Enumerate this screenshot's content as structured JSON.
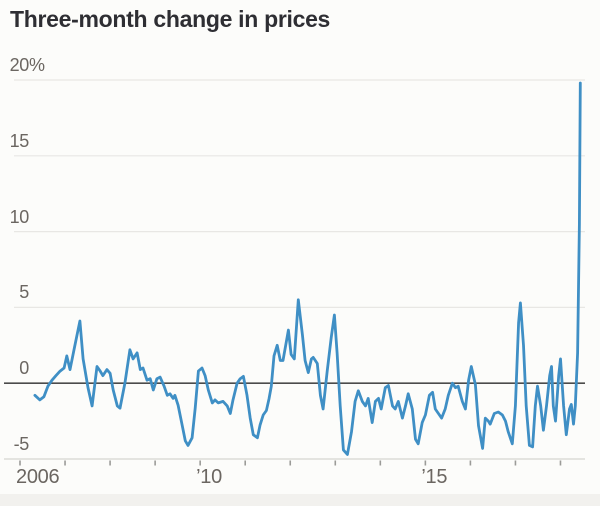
{
  "chart_data": {
    "type": "line",
    "title": "Three-month change in prices",
    "unit": "%",
    "grid": "horizontal",
    "legend": "none",
    "colors": {
      "line": "#3f8fc5",
      "zero_line": "#4b4b4b",
      "gridline": "#e8e7e4",
      "axis_line": "#dcdbd8",
      "tick": "#9b9b98",
      "axis_labels": "#6b6661",
      "title": "#2e2e33",
      "background": "#fcfcfa"
    },
    "x_axis": {
      "min": 2006,
      "max": 2018.5,
      "tick_years": [
        2006,
        2007,
        2008,
        2009,
        2010,
        2011,
        2012,
        2013,
        2014,
        2015,
        2016,
        2017,
        2018
      ],
      "labels": [
        {
          "year": 2006,
          "label": "2006"
        },
        {
          "year": 2010,
          "label": "’10"
        },
        {
          "year": 2015,
          "label": "’15"
        }
      ]
    },
    "y_axis": {
      "min": -5,
      "max": 20,
      "ticks": [
        {
          "value": 20,
          "label": "20",
          "suffix": "%"
        },
        {
          "value": 15,
          "label": "15"
        },
        {
          "value": 10,
          "label": "10"
        },
        {
          "value": 5,
          "label": "5"
        },
        {
          "value": 0,
          "label": "0"
        },
        {
          "value": -5,
          "label": "-5"
        }
      ]
    },
    "series": [
      {
        "name": "Three-month change in prices",
        "color": "#3f8fc5",
        "points": [
          [
            2006.33,
            -0.8
          ],
          [
            2006.44,
            -1.1
          ],
          [
            2006.53,
            -0.9
          ],
          [
            2006.62,
            -0.2
          ],
          [
            2006.71,
            0.2
          ],
          [
            2006.8,
            0.5
          ],
          [
            2006.89,
            0.8
          ],
          [
            2006.98,
            1.0
          ],
          [
            2007.04,
            1.8
          ],
          [
            2007.11,
            0.9
          ],
          [
            2007.2,
            2.2
          ],
          [
            2007.33,
            4.1
          ],
          [
            2007.4,
            1.6
          ],
          [
            2007.51,
            -0.3
          ],
          [
            2007.6,
            -1.5
          ],
          [
            2007.71,
            1.1
          ],
          [
            2007.78,
            0.8
          ],
          [
            2007.84,
            0.5
          ],
          [
            2007.93,
            0.9
          ],
          [
            2008.0,
            0.65
          ],
          [
            2008.07,
            -0.45
          ],
          [
            2008.16,
            -1.5
          ],
          [
            2008.22,
            -1.65
          ],
          [
            2008.33,
            0.0
          ],
          [
            2008.44,
            2.2
          ],
          [
            2008.51,
            1.6
          ],
          [
            2008.6,
            2.0
          ],
          [
            2008.67,
            0.9
          ],
          [
            2008.73,
            1.0
          ],
          [
            2008.82,
            0.2
          ],
          [
            2008.89,
            0.3
          ],
          [
            2008.96,
            -0.45
          ],
          [
            2009.04,
            0.3
          ],
          [
            2009.11,
            0.4
          ],
          [
            2009.2,
            -0.2
          ],
          [
            2009.27,
            -0.8
          ],
          [
            2009.33,
            -0.7
          ],
          [
            2009.4,
            -1.0
          ],
          [
            2009.44,
            -0.8
          ],
          [
            2009.51,
            -1.45
          ],
          [
            2009.6,
            -2.75
          ],
          [
            2009.67,
            -3.8
          ],
          [
            2009.73,
            -4.1
          ],
          [
            2009.82,
            -3.6
          ],
          [
            2009.89,
            -1.65
          ],
          [
            2009.96,
            0.8
          ],
          [
            2010.04,
            1.0
          ],
          [
            2010.11,
            0.5
          ],
          [
            2010.18,
            -0.45
          ],
          [
            2010.27,
            -1.3
          ],
          [
            2010.33,
            -1.1
          ],
          [
            2010.4,
            -1.3
          ],
          [
            2010.51,
            -1.2
          ],
          [
            2010.6,
            -1.5
          ],
          [
            2010.67,
            -2.0
          ],
          [
            2010.73,
            -1.1
          ],
          [
            2010.82,
            0.0
          ],
          [
            2010.89,
            0.3
          ],
          [
            2010.96,
            0.45
          ],
          [
            2011.04,
            -0.8
          ],
          [
            2011.11,
            -2.3
          ],
          [
            2011.18,
            -3.4
          ],
          [
            2011.27,
            -3.6
          ],
          [
            2011.33,
            -2.75
          ],
          [
            2011.4,
            -2.1
          ],
          [
            2011.47,
            -1.8
          ],
          [
            2011.53,
            -1.0
          ],
          [
            2011.58,
            -0.2
          ],
          [
            2011.64,
            1.8
          ],
          [
            2011.71,
            2.5
          ],
          [
            2011.78,
            1.5
          ],
          [
            2011.84,
            1.5
          ],
          [
            2011.96,
            3.5
          ],
          [
            2012.02,
            1.9
          ],
          [
            2012.09,
            1.6
          ],
          [
            2012.18,
            5.5
          ],
          [
            2012.27,
            3.2
          ],
          [
            2012.33,
            1.5
          ],
          [
            2012.4,
            0.7
          ],
          [
            2012.47,
            1.6
          ],
          [
            2012.51,
            1.7
          ],
          [
            2012.6,
            1.3
          ],
          [
            2012.67,
            -0.8
          ],
          [
            2012.73,
            -1.7
          ],
          [
            2012.82,
            0.8
          ],
          [
            2012.91,
            3.0
          ],
          [
            2012.98,
            4.5
          ],
          [
            2013.04,
            2.0
          ],
          [
            2013.11,
            -1.5
          ],
          [
            2013.18,
            -4.4
          ],
          [
            2013.27,
            -4.7
          ],
          [
            2013.36,
            -3.2
          ],
          [
            2013.44,
            -1.2
          ],
          [
            2013.51,
            -0.5
          ],
          [
            2013.6,
            -1.2
          ],
          [
            2013.67,
            -1.5
          ],
          [
            2013.73,
            -1.0
          ],
          [
            2013.82,
            -2.6
          ],
          [
            2013.89,
            -1.2
          ],
          [
            2013.96,
            -1.0
          ],
          [
            2014.02,
            -1.7
          ],
          [
            2014.11,
            -0.3
          ],
          [
            2014.18,
            -0.15
          ],
          [
            2014.27,
            -1.5
          ],
          [
            2014.33,
            -1.7
          ],
          [
            2014.4,
            -1.2
          ],
          [
            2014.49,
            -2.3
          ],
          [
            2014.56,
            -1.5
          ],
          [
            2014.62,
            -0.7
          ],
          [
            2014.71,
            -1.7
          ],
          [
            2014.78,
            -3.7
          ],
          [
            2014.84,
            -4.0
          ],
          [
            2014.93,
            -2.6
          ],
          [
            2015.0,
            -2.1
          ],
          [
            2015.09,
            -0.8
          ],
          [
            2015.16,
            -0.6
          ],
          [
            2015.22,
            -1.7
          ],
          [
            2015.29,
            -2.0
          ],
          [
            2015.36,
            -2.3
          ],
          [
            2015.44,
            -1.7
          ],
          [
            2015.51,
            -0.8
          ],
          [
            2015.6,
            0.0
          ],
          [
            2015.67,
            -0.3
          ],
          [
            2015.73,
            -0.2
          ],
          [
            2015.82,
            -1.2
          ],
          [
            2015.89,
            -1.7
          ],
          [
            2015.96,
            0.2
          ],
          [
            2016.02,
            1.1
          ],
          [
            2016.11,
            -0.1
          ],
          [
            2016.18,
            -2.8
          ],
          [
            2016.27,
            -4.3
          ],
          [
            2016.33,
            -2.3
          ],
          [
            2016.4,
            -2.5
          ],
          [
            2016.44,
            -2.7
          ],
          [
            2016.53,
            -2.0
          ],
          [
            2016.62,
            -1.9
          ],
          [
            2016.71,
            -2.1
          ],
          [
            2016.78,
            -2.5
          ],
          [
            2016.84,
            -3.2
          ],
          [
            2016.93,
            -4.0
          ],
          [
            2017.0,
            -1.5
          ],
          [
            2017.07,
            4.0
          ],
          [
            2017.11,
            5.3
          ],
          [
            2017.18,
            2.5
          ],
          [
            2017.24,
            -1.5
          ],
          [
            2017.31,
            -4.1
          ],
          [
            2017.38,
            -4.2
          ],
          [
            2017.44,
            -1.5
          ],
          [
            2017.49,
            -0.2
          ],
          [
            2017.56,
            -1.5
          ],
          [
            2017.62,
            -3.1
          ],
          [
            2017.69,
            -1.5
          ],
          [
            2017.76,
            0.5
          ],
          [
            2017.8,
            1.1
          ],
          [
            2017.84,
            -1.5
          ],
          [
            2017.89,
            -2.5
          ],
          [
            2017.96,
            0.5
          ],
          [
            2018.0,
            1.6
          ],
          [
            2018.07,
            -1.5
          ],
          [
            2018.13,
            -3.4
          ],
          [
            2018.2,
            -1.7
          ],
          [
            2018.24,
            -1.4
          ],
          [
            2018.29,
            -2.7
          ],
          [
            2018.33,
            -1.5
          ],
          [
            2018.38,
            2.0
          ],
          [
            2018.42,
            10.5
          ],
          [
            2018.44,
            19.8
          ]
        ]
      }
    ]
  }
}
